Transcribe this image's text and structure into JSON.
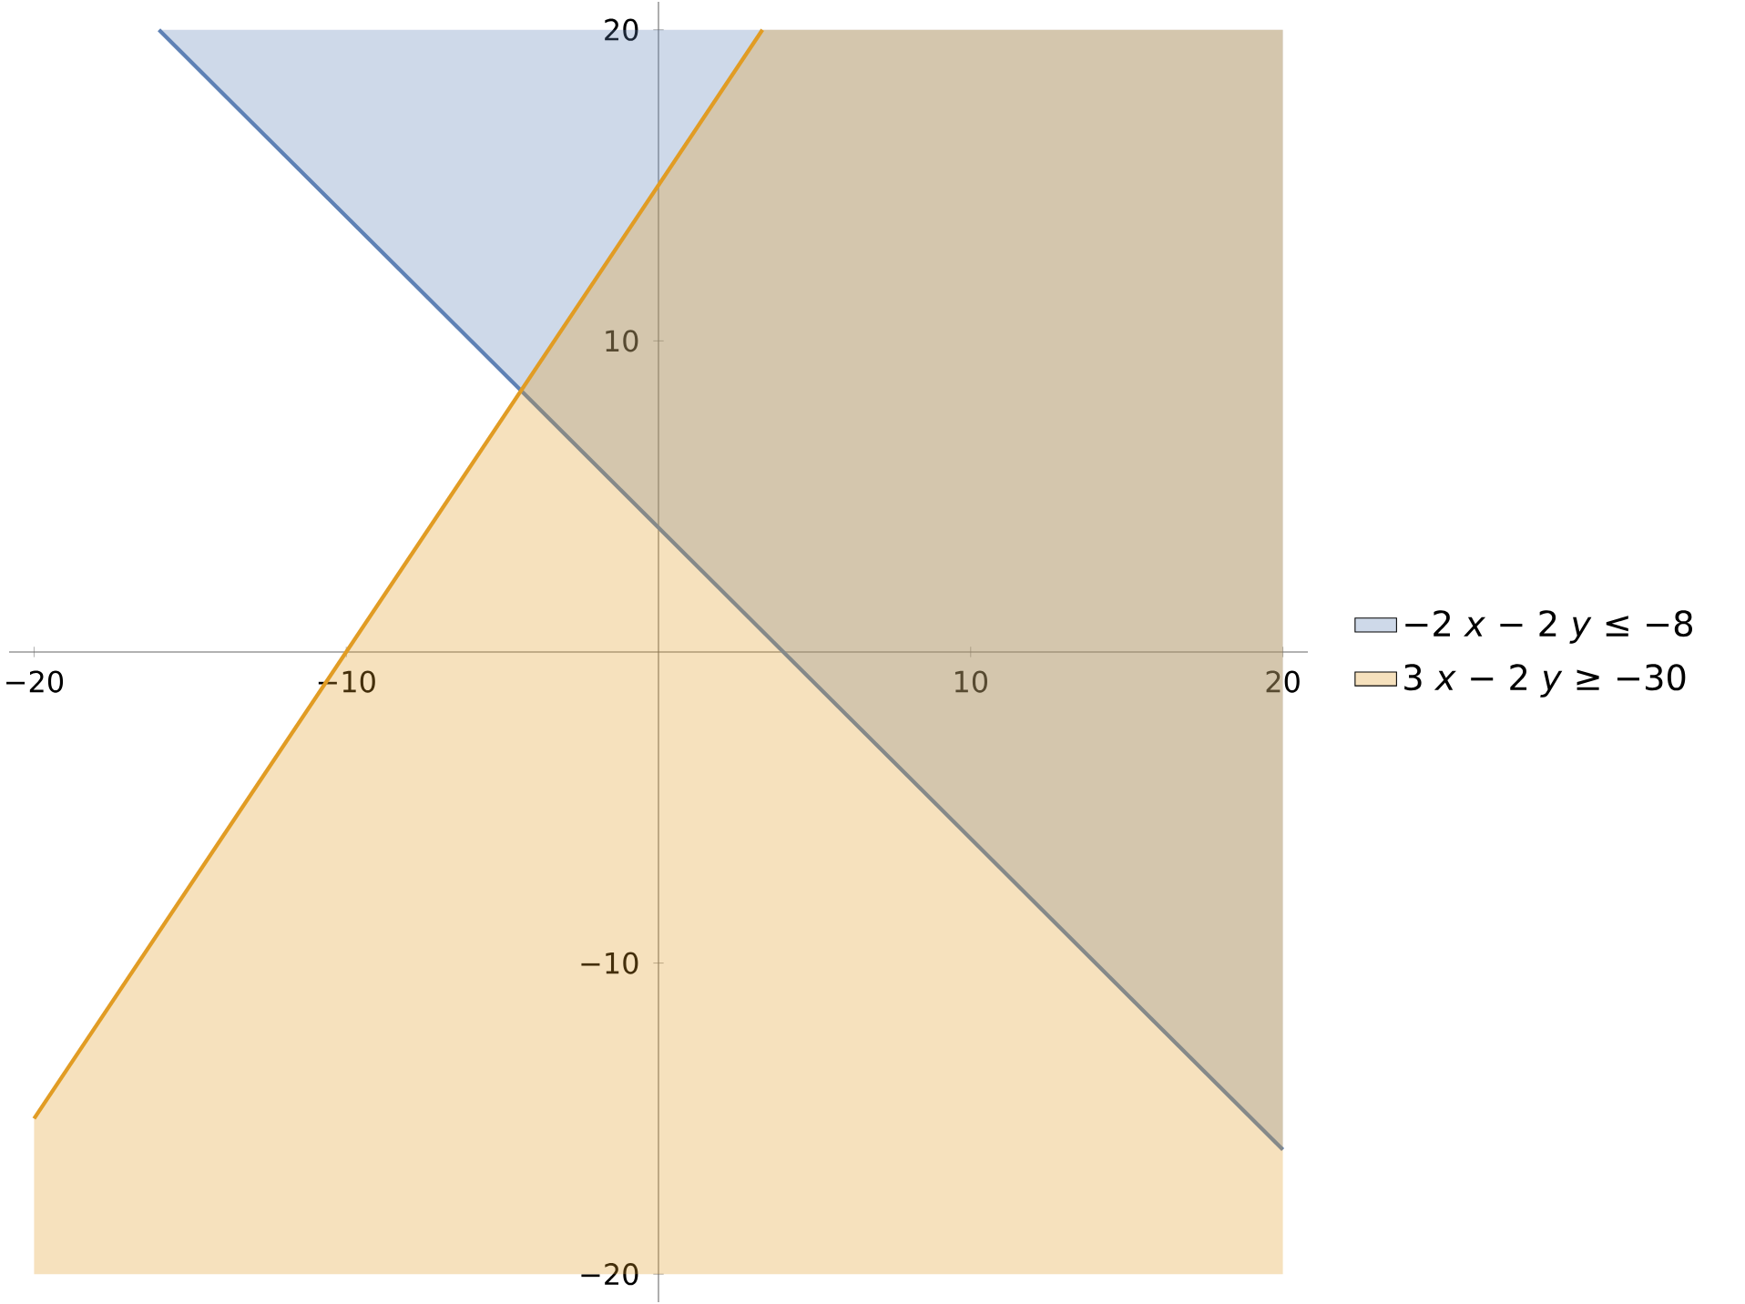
{
  "chart_data": {
    "type": "line",
    "series": [
      {
        "name": "−2 *x* − 2 *y* ≤ −8",
        "color": "#5e81b5",
        "x": [
          -16,
          20
        ],
        "values": [
          20,
          -16
        ],
        "lower": [
          20,
          -16
        ],
        "upper": [
          20,
          20
        ]
      },
      {
        "name": "3 *x* − 2 *y* ≥ −30",
        "color": "#e19c24",
        "x": [
          -20,
          3.33,
          20
        ],
        "values": [
          -15,
          20,
          null
        ],
        "lower": [
          -20,
          -20,
          -20
        ],
        "upper": [
          -15,
          20,
          20
        ]
      }
    ],
    "xlim": [
      -20.8,
      20.8
    ],
    "ylim": [
      -20.9,
      20.9
    ],
    "xticks": [
      {
        "value": -20,
        "label": "−20"
      },
      {
        "value": -10,
        "label": "−10"
      },
      {
        "value": 10,
        "label": "10"
      },
      {
        "value": 20,
        "label": "20"
      }
    ],
    "yticks": [
      {
        "value": -20,
        "label": "−20"
      },
      {
        "value": -10,
        "label": "−10"
      },
      {
        "value": 10,
        "label": "10"
      },
      {
        "value": 20,
        "label": "20"
      }
    ],
    "legend": "right",
    "grid": false
  }
}
